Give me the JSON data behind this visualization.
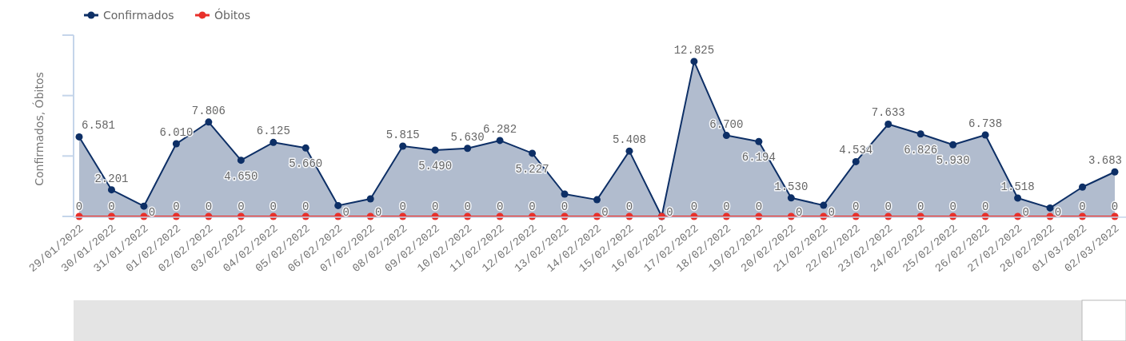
{
  "chart_data": {
    "type": "area",
    "ylabel": "Confirmados, Óbitos",
    "categories": [
      "29/01/2022",
      "30/01/2022",
      "31/01/2022",
      "01/02/2022",
      "02/02/2022",
      "03/02/2022",
      "04/02/2022",
      "05/02/2022",
      "06/02/2022",
      "07/02/2022",
      "08/02/2022",
      "09/02/2022",
      "10/02/2022",
      "11/02/2022",
      "12/02/2022",
      "13/02/2022",
      "14/02/2022",
      "15/02/2022",
      "16/02/2022",
      "17/02/2022",
      "18/02/2022",
      "19/02/2022",
      "20/02/2022",
      "21/02/2022",
      "22/02/2022",
      "23/02/2022",
      "24/02/2022",
      "25/02/2022",
      "26/02/2022",
      "27/02/2022",
      "28/02/2022",
      "01/03/2022",
      "02/03/2022"
    ],
    "series": [
      {
        "name": "Confirmados",
        "type": "area",
        "color": "#0d2f66",
        "values": [
          6581,
          2201,
          850,
          6010,
          7806,
          4650,
          6125,
          5660,
          900,
          1450,
          5815,
          5490,
          5630,
          6282,
          5227,
          1850,
          1380,
          5408,
          0,
          12825,
          6700,
          6194,
          1530,
          920,
          4534,
          7633,
          6826,
          5930,
          6738,
          1518,
          700,
          2430,
          3683
        ],
        "value_labels": [
          "6.581",
          "2.201",
          null,
          "6.010",
          "7.806",
          "4.650",
          "6.125",
          "5.660",
          null,
          null,
          "5.815",
          "5.490",
          "5.630",
          "6.282",
          "5.227",
          null,
          null,
          "5.408",
          null,
          "12.825",
          "6.700",
          "6.194",
          "1.530",
          null,
          "4.534",
          "7.633",
          "6.826",
          "5.930",
          "6.738",
          "1.518",
          null,
          null,
          "3.683"
        ]
      },
      {
        "name": "Óbitos",
        "type": "line",
        "color": "#e8302a",
        "values": [
          0,
          0,
          0,
          0,
          0,
          0,
          0,
          0,
          0,
          0,
          0,
          0,
          0,
          0,
          0,
          0,
          0,
          0,
          0,
          0,
          0,
          0,
          0,
          0,
          0,
          0,
          0,
          0,
          0,
          0,
          0,
          0,
          0
        ],
        "value_labels": [
          "0",
          "0",
          "0",
          "0",
          "0",
          "0",
          "0",
          "0",
          "0",
          "0",
          "0",
          "0",
          "0",
          "0",
          "0",
          "0",
          "0",
          "0",
          "0",
          "0",
          "0",
          "0",
          "0",
          "0",
          "0",
          "0",
          "0",
          "0",
          "0",
          "0",
          "0",
          "0",
          "0"
        ]
      }
    ],
    "ylim": [
      0,
      15000
    ],
    "yticks": [
      {
        "value": 0,
        "label": null
      },
      {
        "value": 5000,
        "label": null
      },
      {
        "value": 10000,
        "label": null
      },
      {
        "value": 15000,
        "label": null
      }
    ],
    "tick_labels": "x",
    "grid": false,
    "legend": "top left",
    "marker": "circle",
    "line_style": "solid"
  }
}
